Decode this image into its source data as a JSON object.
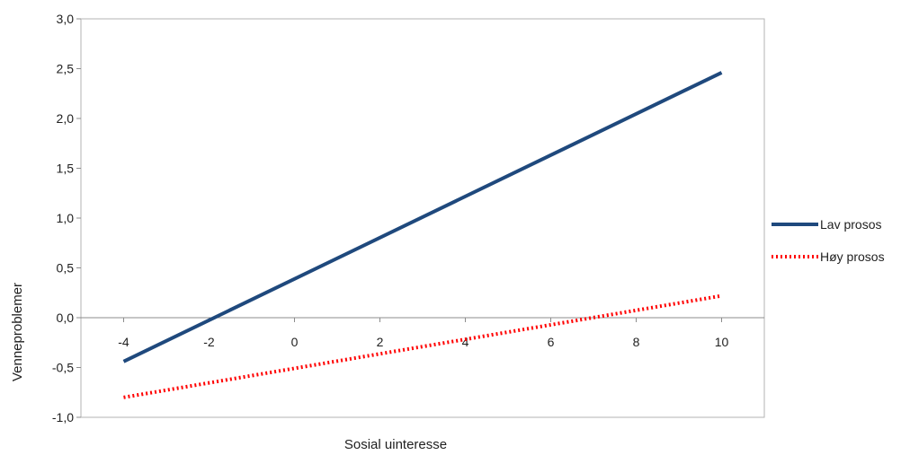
{
  "chart_data": {
    "type": "line",
    "title": "",
    "xlabel": "Sosial uinteresse",
    "ylabel": "Venneproblemer",
    "xlim": [
      -5,
      11
    ],
    "ylim": [
      -1.0,
      3.0
    ],
    "x_ticks": [
      "-4",
      "-2",
      "0",
      "2",
      "4",
      "6",
      "8",
      "10"
    ],
    "y_ticks": [
      "3,0",
      "2,5",
      "2,0",
      "1,5",
      "1,0",
      "0,5",
      "0,0",
      "-0,5",
      "-1,0"
    ],
    "grid": false,
    "legend_position": "right",
    "series": [
      {
        "name": "Lav prosos",
        "x": [
          -4,
          10
        ],
        "y": [
          -0.44,
          2.46
        ],
        "color": "#1f497d",
        "style": "solid"
      },
      {
        "name": "Høy prosos",
        "x": [
          -4,
          10
        ],
        "y": [
          -0.8,
          0.22
        ],
        "color": "#ff0000",
        "style": "dotted"
      }
    ]
  }
}
